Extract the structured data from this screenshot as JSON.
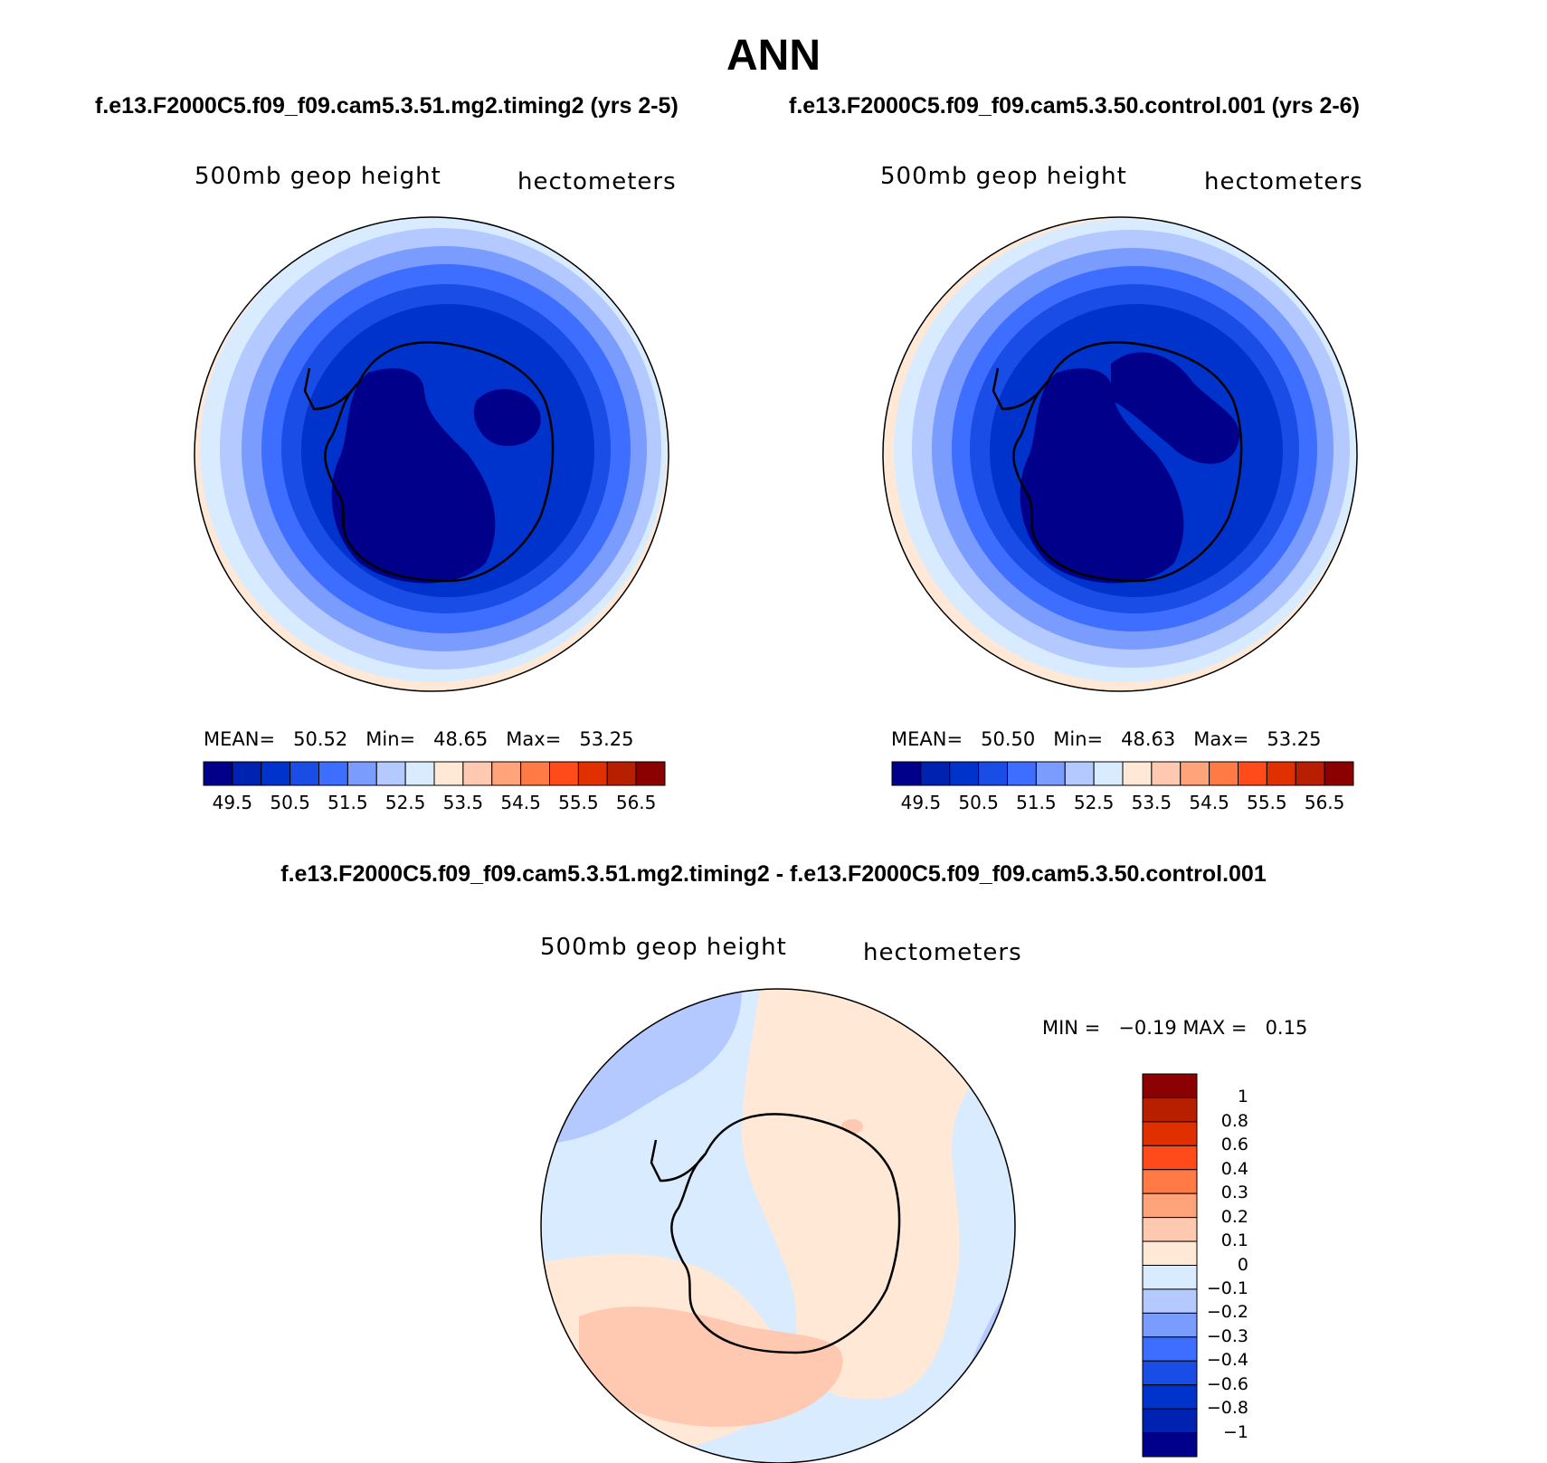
{
  "title": "ANN",
  "cases": {
    "test": "f.e13.F2000C5.f09_f09.cam5.3.51.mg2.timing2 (yrs 2-5)",
    "control": "f.e13.F2000C5.f09_f09.cam5.3.50.control.001 (yrs 2-6)"
  },
  "diff_title": "f.e13.F2000C5.f09_f09.cam5.3.51.mg2.timing2 - f.e13.F2000C5.f09_f09.cam5.3.50.control.001",
  "variable": "500mb geop height",
  "units": "hectometers",
  "panels": [
    {
      "name": "test",
      "mean_label": "MEAN=",
      "mean": "50.52",
      "min_label": "Min=",
      "min": "48.65",
      "max_label": "Max=",
      "max": "53.25"
    },
    {
      "name": "control",
      "mean_label": "MEAN=",
      "mean": "50.50",
      "min_label": "Min=",
      "min": "48.63",
      "max_label": "Max=",
      "max": "53.25"
    }
  ],
  "abs_colorbar": {
    "colors": [
      "#00008b",
      "#0022b0",
      "#0033cc",
      "#1a4de6",
      "#3d6eff",
      "#7a9cff",
      "#b3c9ff",
      "#d9ebff",
      "#ffe8d6",
      "#ffc8b0",
      "#ffa37a",
      "#ff7a45",
      "#ff4a1a",
      "#e03000",
      "#b81e00",
      "#8b0000"
    ],
    "tick_labels": [
      "49.5",
      "50.5",
      "51.5",
      "52.5",
      "53.5",
      "54.5",
      "55.5",
      "56.5"
    ]
  },
  "diff_stats": {
    "min_label": "MIN =",
    "min": "−0.19",
    "max_label": "MAX =",
    "max": "0.15"
  },
  "diff_colorbar": {
    "colors": [
      "#8b0000",
      "#b81e00",
      "#e03000",
      "#ff4a1a",
      "#ff7a45",
      "#ffa37a",
      "#ffc8b0",
      "#ffe8d6",
      "#d9ebff",
      "#b3c9ff",
      "#7a9cff",
      "#3d6eff",
      "#1a4de6",
      "#0033cc",
      "#0022b0",
      "#00008b"
    ],
    "tick_labels": [
      "1",
      "0.8",
      "0.6",
      "0.4",
      "0.3",
      "0.2",
      "0.1",
      "0",
      "−0.1",
      "−0.2",
      "−0.3",
      "−0.4",
      "−0.6",
      "−0.8",
      "−1"
    ]
  }
}
